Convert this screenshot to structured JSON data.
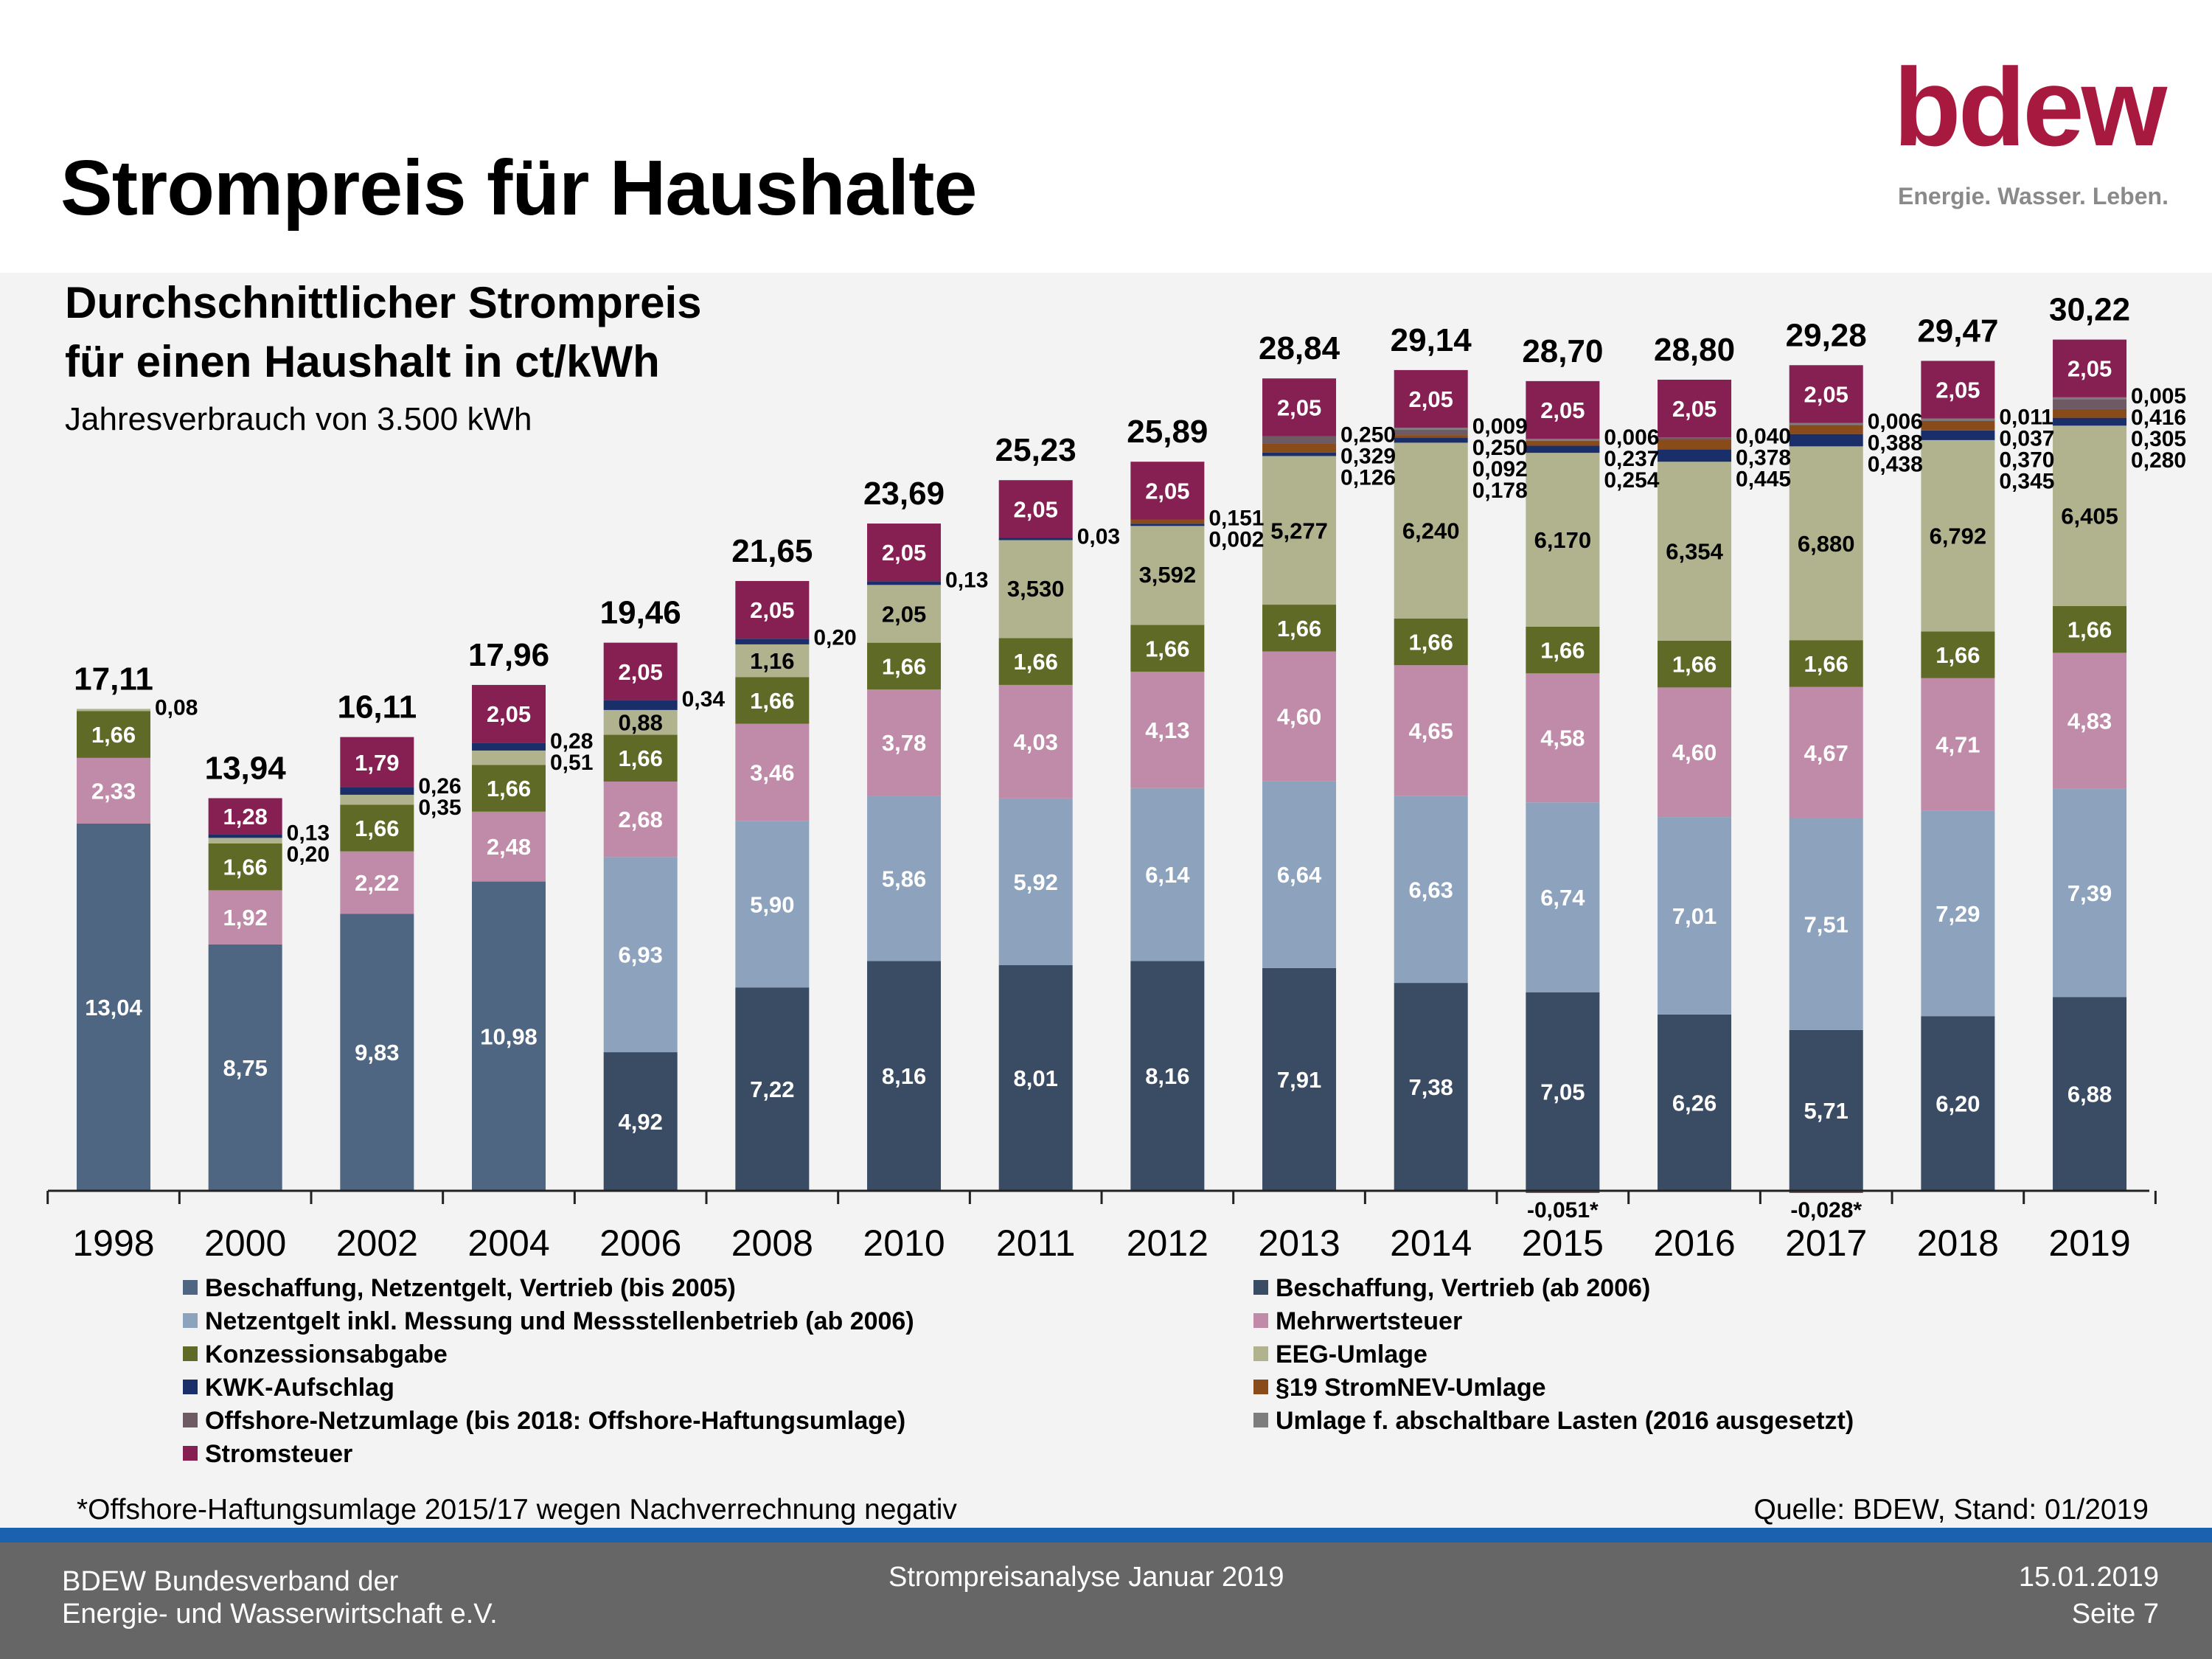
{
  "title": "Strompreis für Haushalte",
  "logo": {
    "word": "bdew",
    "tagline": "Energie. Wasser. Leben."
  },
  "subtitle": {
    "line1": "Durchschnittlicher Strompreis",
    "line2": "für einen Haushalt in ct/kWh",
    "line3": "Jahresverbrauch von 3.500 kWh"
  },
  "footnote": "*Offshore-Haftungsumlage 2015/17 wegen Nachverrechnung negativ",
  "source": "Quelle: BDEW, Stand: 01/2019",
  "footer": {
    "org_line1": "BDEW Bundesverband der",
    "org_line2": "Energie- und Wasserwirtschaft e.V.",
    "center": "Strompreisanalyse Januar 2019",
    "date": "15.01.2019",
    "page": "Seite 7"
  },
  "colors": {
    "beschaffung_alt": "#4f6682",
    "beschaffung": "#3a4c63",
    "netz": "#8da3bd",
    "mwst": "#c08ba8",
    "ka": "#5e6a25",
    "eeg": "#b0b38e",
    "kwk": "#1a2f6a",
    "p19": "#8a4b1b",
    "offshore": "#6e5a63",
    "abl": "#7d7d7d",
    "stromsteuer": "#861f52"
  },
  "chart_data": {
    "type": "bar",
    "stacked": true,
    "categories": [
      "1998",
      "2000",
      "2002",
      "2004",
      "2006",
      "2008",
      "2010",
      "2011",
      "2012",
      "2013",
      "2014",
      "2015",
      "2016",
      "2017",
      "2018",
      "2019"
    ],
    "totals": [
      "17,11",
      "13,94",
      "16,11",
      "17,96",
      "19,46",
      "21,65",
      "23,69",
      "25,23",
      "25,89",
      "28,84",
      "29,14",
      "28,70",
      "28,80",
      "29,28",
      "29,47",
      "30,22"
    ],
    "series": [
      {
        "key": "beschaffung_alt",
        "name": "Beschaffung, Netzentgelt, Vertrieb (bis 2005)",
        "values": [
          13.04,
          8.75,
          9.83,
          10.98,
          null,
          null,
          null,
          null,
          null,
          null,
          null,
          null,
          null,
          null,
          null,
          null
        ],
        "labels": [
          "13,04",
          "8,75",
          "9,83",
          "10,98",
          "",
          "",
          "",
          "",
          "",
          "",
          "",
          "",
          "",
          "",
          "",
          ""
        ]
      },
      {
        "key": "beschaffung",
        "name": "Beschaffung, Vertrieb (ab 2006)",
        "values": [
          null,
          null,
          null,
          null,
          4.92,
          7.22,
          8.16,
          8.01,
          8.16,
          7.91,
          7.38,
          7.05,
          6.26,
          5.71,
          6.2,
          6.88
        ],
        "labels": [
          "",
          "",
          "",
          "",
          "4,92",
          "7,22",
          "8,16",
          "8,01",
          "8,16",
          "7,91",
          "7,38",
          "7,05",
          "6,26",
          "5,71",
          "6,20",
          "6,88"
        ]
      },
      {
        "key": "netz",
        "name": "Netzentgelt inkl. Messung und Messstellenbetrieb (ab 2006)",
        "values": [
          null,
          null,
          null,
          null,
          6.93,
          5.9,
          5.86,
          5.92,
          6.14,
          6.64,
          6.63,
          6.74,
          7.01,
          7.51,
          7.29,
          7.39
        ],
        "labels": [
          "",
          "",
          "",
          "",
          "6,93",
          "5,90",
          "5,86",
          "5,92",
          "6,14",
          "6,64",
          "6,63",
          "6,74",
          "7,01",
          "7,51",
          "7,29",
          "7,39"
        ]
      },
      {
        "key": "mwst",
        "name": "Mehrwertsteuer",
        "values": [
          2.33,
          1.92,
          2.22,
          2.48,
          2.68,
          3.46,
          3.78,
          4.03,
          4.13,
          4.6,
          4.65,
          4.58,
          4.6,
          4.67,
          4.71,
          4.83
        ],
        "labels": [
          "2,33",
          "1,92",
          "2,22",
          "2,48",
          "2,68",
          "3,46",
          "3,78",
          "4,03",
          "4,13",
          "4,60",
          "4,65",
          "4,58",
          "4,60",
          "4,67",
          "4,71",
          "4,83"
        ]
      },
      {
        "key": "ka",
        "name": "Konzessionsabgabe",
        "values": [
          1.66,
          1.66,
          1.66,
          1.66,
          1.66,
          1.66,
          1.66,
          1.66,
          1.66,
          1.66,
          1.66,
          1.66,
          1.66,
          1.66,
          1.66,
          1.66
        ],
        "labels": [
          "1,66",
          "1,66",
          "1,66",
          "1,66",
          "1,66",
          "1,66",
          "1,66",
          "1,66",
          "1,66",
          "1,66",
          "1,66",
          "1,66",
          "1,66",
          "1,66",
          "1,66",
          "1,66"
        ]
      },
      {
        "key": "eeg",
        "name": "EEG-Umlage",
        "values": [
          0.08,
          0.2,
          0.35,
          0.51,
          0.88,
          1.16,
          2.05,
          3.53,
          3.592,
          5.277,
          6.24,
          6.17,
          6.354,
          6.88,
          6.792,
          6.405
        ],
        "labels": [
          "0,08",
          "0,20",
          "0,35",
          "0,51",
          "0,88",
          "1,16",
          "2,05",
          "3,530",
          "3,592",
          "5,277",
          "6,240",
          "6,170",
          "6,354",
          "6,880",
          "6,792",
          "6,405"
        ]
      },
      {
        "key": "kwk",
        "name": "KWK-Aufschlag",
        "values": [
          null,
          0.13,
          0.26,
          0.28,
          0.34,
          0.2,
          0.13,
          0.03,
          0.002,
          0.126,
          0.178,
          0.254,
          0.445,
          0.438,
          0.345,
          0.28
        ],
        "labels": [
          "",
          "0,13",
          "0,26",
          "0,28",
          "0,34",
          "0,20",
          "0,13",
          "0,03",
          "0,002",
          "0,126",
          "0,178",
          "0,254",
          "0,445",
          "0,438",
          "0,345",
          "0,280"
        ]
      },
      {
        "key": "p19",
        "name": "§19 StromNEV-Umlage",
        "values": [
          null,
          null,
          null,
          null,
          null,
          null,
          null,
          null,
          0.151,
          0.329,
          0.092,
          0.237,
          0.378,
          0.388,
          0.37,
          0.305
        ],
        "labels": [
          "",
          "",
          "",
          "",
          "",
          "",
          "",
          "",
          "0,151",
          "0,329",
          "0,092",
          "0,237",
          "0,378",
          "0,388",
          "0,370",
          "0,305"
        ]
      },
      {
        "key": "offshore",
        "name": "Offshore-Netzumlage (bis 2018: Offshore-Haftungsumlage)",
        "values": [
          null,
          null,
          null,
          null,
          null,
          null,
          null,
          null,
          null,
          0.25,
          0.25,
          -0.051,
          0.04,
          -0.028,
          0.037,
          0.416
        ],
        "labels": [
          "",
          "",
          "",
          "",
          "",
          "",
          "",
          "",
          "",
          "0,250",
          "0,250",
          "-0,051*",
          "0,040",
          "-0,028*",
          "0,037",
          "0,416"
        ]
      },
      {
        "key": "abl",
        "name": "Umlage f. abschaltbare Lasten (2016 ausgesetzt)",
        "values": [
          null,
          null,
          null,
          null,
          null,
          null,
          null,
          null,
          null,
          null,
          0.009,
          0.006,
          null,
          0.006,
          0.011,
          0.005
        ],
        "labels": [
          "",
          "",
          "",
          "",
          "",
          "",
          "",
          "",
          "",
          "",
          "0,009",
          "0,006",
          "",
          "0,006",
          "0,011",
          "0,005"
        ]
      },
      {
        "key": "stromsteuer",
        "name": "Stromsteuer",
        "values": [
          null,
          1.28,
          1.79,
          2.05,
          2.05,
          2.05,
          2.05,
          2.05,
          2.05,
          2.05,
          2.05,
          2.05,
          2.05,
          2.05,
          2.05,
          2.05
        ],
        "labels": [
          "",
          "1,28",
          "1,79",
          "2,05",
          "2,05",
          "2,05",
          "2,05",
          "2,05",
          "2,05",
          "2,05",
          "2,05",
          "2,05",
          "2,05",
          "2,05",
          "2,05",
          "2,05"
        ]
      }
    ],
    "legend_position": "bottom",
    "grid": false,
    "ylim": [
      0,
      32
    ]
  }
}
